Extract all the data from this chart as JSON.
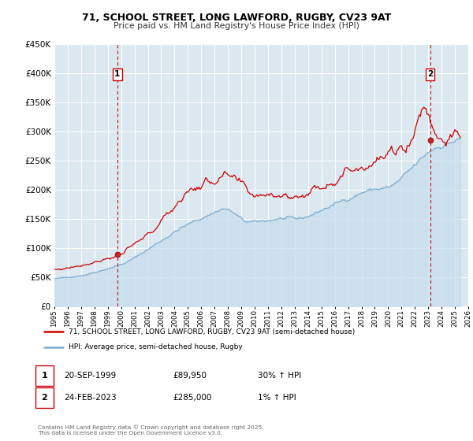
{
  "title1": "71, SCHOOL STREET, LONG LAWFORD, RUGBY, CV23 9AT",
  "title2": "Price paid vs. HM Land Registry's House Price Index (HPI)",
  "legend_label1": "71, SCHOOL STREET, LONG LAWFORD, RUGBY, CV23 9AT (semi-detached house)",
  "legend_label2": "HPI: Average price, semi-detached house, Rugby",
  "color_price": "#cc0000",
  "color_hpi": "#7aadcf",
  "color_hpi_fill": "#c5dcec",
  "annotation1_label": "1",
  "annotation1_date": "20-SEP-1999",
  "annotation1_price": "£89,950",
  "annotation1_hpi": "30% ↑ HPI",
  "annotation2_label": "2",
  "annotation2_date": "24-FEB-2023",
  "annotation2_price": "£285,000",
  "annotation2_hpi": "1% ↑ HPI",
  "footnote": "Contains HM Land Registry data © Crown copyright and database right 2025.\nThis data is licensed under the Open Government Licence v3.0.",
  "ylim": [
    0,
    450000
  ],
  "xlim_start": 1995.0,
  "xlim_end": 2026.0,
  "marker1_x": 1999.72,
  "marker1_y": 89950,
  "marker2_x": 2023.14,
  "marker2_y": 285000,
  "vline1_x": 1999.72,
  "vline2_x": 2023.14,
  "bg_color": "#dce8f0"
}
